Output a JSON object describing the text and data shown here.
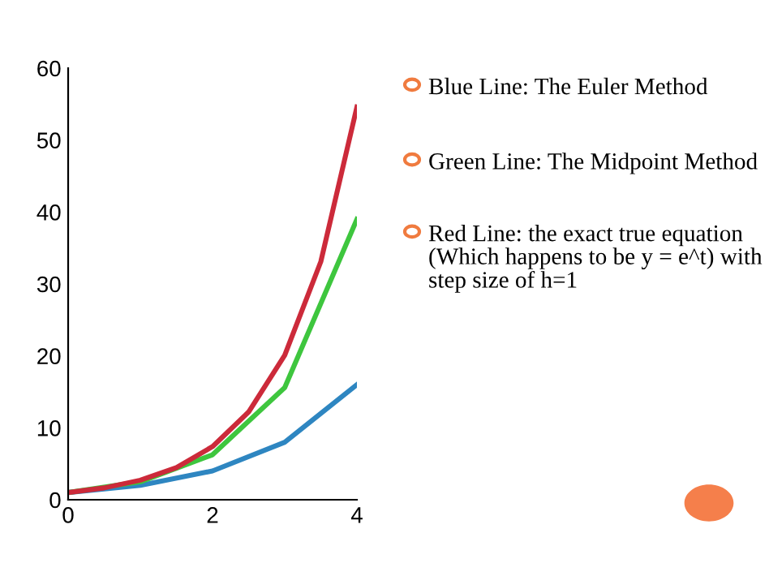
{
  "chart_data": {
    "type": "line",
    "series": [
      {
        "color": "#2e86c1",
        "x": [
          0,
          1,
          2,
          3,
          4
        ],
        "values": [
          1,
          2,
          4,
          8,
          16
        ]
      },
      {
        "color": "#3ec63e",
        "x": [
          0,
          1,
          2,
          3,
          4
        ],
        "values": [
          1,
          2.5,
          6.25,
          15.6,
          39
        ]
      },
      {
        "color": "#cc2a3a",
        "x": [
          0,
          0.5,
          1,
          1.5,
          2,
          2.5,
          3,
          3.5,
          4
        ],
        "values": [
          1,
          1.65,
          2.72,
          4.48,
          7.39,
          12.2,
          20.1,
          33.1,
          54.6
        ]
      }
    ],
    "xlim": [
      0,
      4
    ],
    "xticks": [
      0,
      2,
      4
    ],
    "ylim": [
      0,
      60
    ],
    "yticks": [
      0,
      10,
      20,
      30,
      40,
      50,
      60
    ],
    "grid": false,
    "legend": false,
    "marker": "none",
    "line_style": "solid",
    "annotations": [
      "Blue Line: The Euler Method",
      "Green Line: The Midpoint Method",
      "Red Line: the exact true equation (Which happens to be y = e^t) with step size of h=1"
    ]
  }
}
